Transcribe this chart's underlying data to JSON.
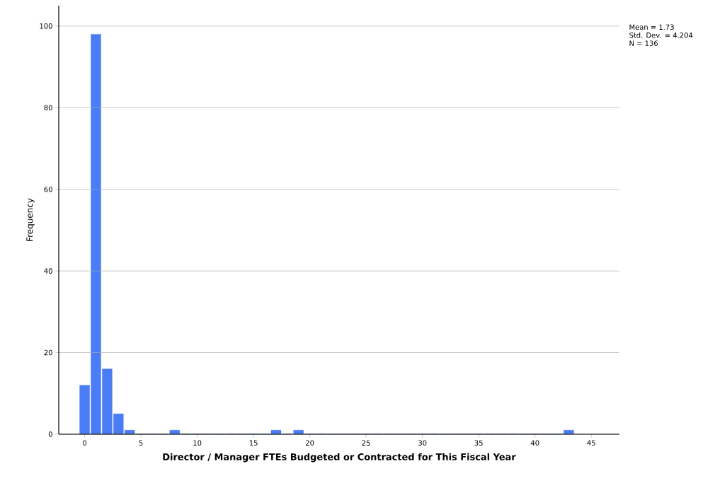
{
  "chart_data": {
    "type": "histogram",
    "xlabel": "Director / Manager FTEs Budgeted or Contracted for This Fiscal Year",
    "ylabel": "Frequency",
    "bins": [
      -0.5,
      0.5,
      1.5,
      2.5,
      3.5,
      4.5,
      5.5,
      6.5,
      7.5,
      8.5,
      9.5,
      10.5,
      11.5,
      12.5,
      13.5,
      14.5,
      15.5,
      16.5,
      17.5,
      18.5,
      19.5,
      20.5,
      21.5,
      22.5,
      23.5,
      24.5,
      25.5,
      26.5,
      27.5,
      28.5,
      29.5,
      30.5,
      31.5,
      32.5,
      33.5,
      34.5,
      35.5,
      36.5,
      37.5,
      38.5,
      39.5,
      40.5,
      41.5,
      42.5,
      43.5
    ],
    "values": [
      12,
      98,
      16,
      5,
      1,
      0,
      0,
      0,
      1,
      0,
      0,
      0,
      0,
      0,
      0,
      0,
      0,
      1,
      0,
      1,
      0,
      0,
      0,
      0,
      0,
      0,
      0,
      0,
      0,
      0,
      0,
      0,
      0,
      0,
      0,
      0,
      0,
      0,
      0,
      0,
      0,
      0,
      0,
      1
    ],
    "color": "#4a7cf5",
    "xlim": [
      -2.3,
      47.5
    ],
    "ylim": [
      0,
      105
    ],
    "xticks": [
      0,
      5,
      10,
      15,
      20,
      25,
      30,
      35,
      40,
      45
    ],
    "yticks": [
      0,
      20,
      40,
      60,
      80,
      100
    ],
    "grid": "y",
    "annotations": [
      "Mean = 1.73",
      "Std. Dev. = 4.204",
      "N = 136"
    ]
  }
}
